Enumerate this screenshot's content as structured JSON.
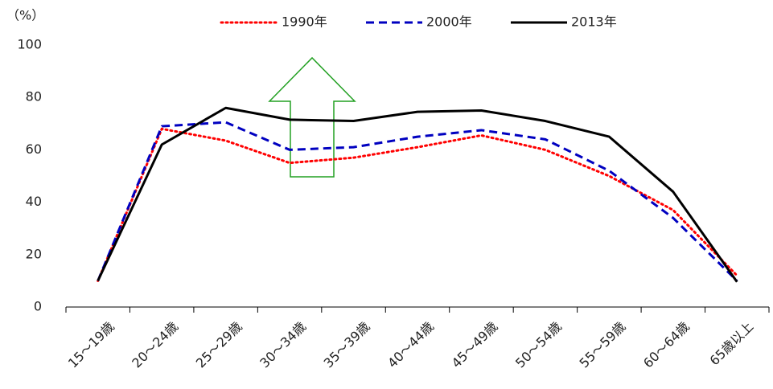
{
  "chart_data": {
    "type": "line",
    "y_label": "（%）",
    "categories": [
      "15～19歳",
      "20～24歳",
      "25～29歳",
      "30～34歳",
      "35～39歳",
      "40～44歳",
      "45～49歳",
      "50～54歳",
      "55～59歳",
      "60～64歳",
      "65歳以上"
    ],
    "series": [
      {
        "name": "1990年",
        "color": "#ff0000",
        "dash": "dotted",
        "values": [
          10,
          68,
          63.5,
          55,
          57,
          61,
          65.5,
          60,
          50,
          37,
          12
        ]
      },
      {
        "name": "2000年",
        "color": "#0000c0",
        "dash": "dashed",
        "values": [
          10,
          69,
          70.5,
          60,
          61,
          65,
          67.5,
          64,
          52,
          34,
          10
        ]
      },
      {
        "name": "2013年",
        "color": "#000000",
        "dash": "solid",
        "values": [
          10,
          62,
          76,
          71.5,
          71,
          74.5,
          75,
          71,
          65,
          44,
          9.6
        ]
      }
    ],
    "ylim": [
      0,
      100
    ],
    "yticks": [
      0,
      20,
      40,
      60,
      80,
      100
    ],
    "grid": false
  }
}
